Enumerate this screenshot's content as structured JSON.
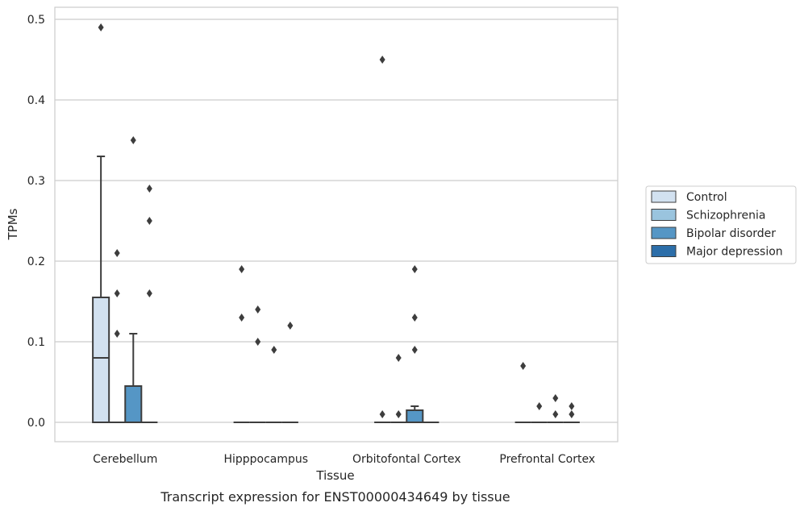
{
  "chart_data": {
    "type": "box",
    "title": "",
    "caption": "Transcript expression for ENST00000434649 by tissue",
    "xlabel": "Tissue",
    "ylabel": "TPMs",
    "ylim": [
      -0.024,
      0.515
    ],
    "yticks": [
      "0.0",
      "0.1",
      "0.2",
      "0.3",
      "0.4",
      "0.5"
    ],
    "ytick_values": [
      0.0,
      0.1,
      0.2,
      0.3,
      0.4,
      0.5
    ],
    "grid": true,
    "legend_placement": "right",
    "categories": [
      "Cerebellum",
      "Hipppocampus",
      "Orbitofontal Cortex",
      "Prefrontal Cortex"
    ],
    "series": [
      {
        "name": "Control",
        "color": "#d2e1f0",
        "boxes": [
          {
            "q1": 0.0,
            "median": 0.08,
            "q3": 0.155,
            "whislo": 0.0,
            "whishi": 0.33,
            "fliers": [
              0.49
            ]
          },
          {
            "q1": 0.0,
            "median": 0.0,
            "q3": 0.0,
            "whislo": 0.0,
            "whishi": 0.0,
            "fliers": [
              0.19,
              0.13
            ]
          },
          {
            "q1": 0.0,
            "median": 0.0,
            "q3": 0.0,
            "whislo": 0.0,
            "whishi": 0.0,
            "fliers": [
              0.45,
              0.01
            ]
          },
          {
            "q1": 0.0,
            "median": 0.0,
            "q3": 0.0,
            "whislo": 0.0,
            "whishi": 0.0,
            "fliers": [
              0.07
            ]
          }
        ]
      },
      {
        "name": "Schizophrenia",
        "color": "#9ac4de",
        "boxes": [
          {
            "q1": 0.0,
            "median": 0.0,
            "q3": 0.0,
            "whislo": 0.0,
            "whishi": 0.0,
            "fliers": [
              0.21,
              0.16,
              0.11
            ]
          },
          {
            "q1": 0.0,
            "median": 0.0,
            "q3": 0.0,
            "whislo": 0.0,
            "whishi": 0.0,
            "fliers": [
              0.14,
              0.1
            ]
          },
          {
            "q1": 0.0,
            "median": 0.0,
            "q3": 0.0,
            "whislo": 0.0,
            "whishi": 0.0,
            "fliers": [
              0.08,
              0.01
            ]
          },
          {
            "q1": 0.0,
            "median": 0.0,
            "q3": 0.0,
            "whislo": 0.0,
            "whishi": 0.0,
            "fliers": [
              0.02
            ]
          }
        ]
      },
      {
        "name": "Bipolar disorder",
        "color": "#5596c5",
        "boxes": [
          {
            "q1": 0.0,
            "median": 0.0,
            "q3": 0.045,
            "whislo": 0.0,
            "whishi": 0.11,
            "fliers": [
              0.35
            ]
          },
          {
            "q1": 0.0,
            "median": 0.0,
            "q3": 0.0,
            "whislo": 0.0,
            "whishi": 0.0,
            "fliers": [
              0.09
            ]
          },
          {
            "q1": 0.0,
            "median": 0.0,
            "q3": 0.015,
            "whislo": 0.0,
            "whishi": 0.02,
            "fliers": [
              0.19,
              0.13,
              0.09
            ]
          },
          {
            "q1": 0.0,
            "median": 0.0,
            "q3": 0.0,
            "whislo": 0.0,
            "whishi": 0.0,
            "fliers": [
              0.03,
              0.01
            ]
          }
        ]
      },
      {
        "name": "Major depression",
        "color": "#2c6ea9",
        "boxes": [
          {
            "q1": 0.0,
            "median": 0.0,
            "q3": 0.0,
            "whislo": 0.0,
            "whishi": 0.0,
            "fliers": [
              0.29,
              0.25,
              0.16
            ]
          },
          {
            "q1": 0.0,
            "median": 0.0,
            "q3": 0.0,
            "whislo": 0.0,
            "whishi": 0.0,
            "fliers": [
              0.12
            ]
          },
          {
            "q1": 0.0,
            "median": 0.0,
            "q3": 0.0,
            "whislo": 0.0,
            "whishi": 0.0,
            "fliers": []
          },
          {
            "q1": 0.0,
            "median": 0.0,
            "q3": 0.0,
            "whislo": 0.0,
            "whishi": 0.0,
            "fliers": [
              0.02,
              0.01
            ]
          }
        ]
      }
    ]
  },
  "colors": {
    "grid": "#cccccc",
    "box_edge": "#3d3d3d",
    "axes_edge": "#cccccc"
  }
}
